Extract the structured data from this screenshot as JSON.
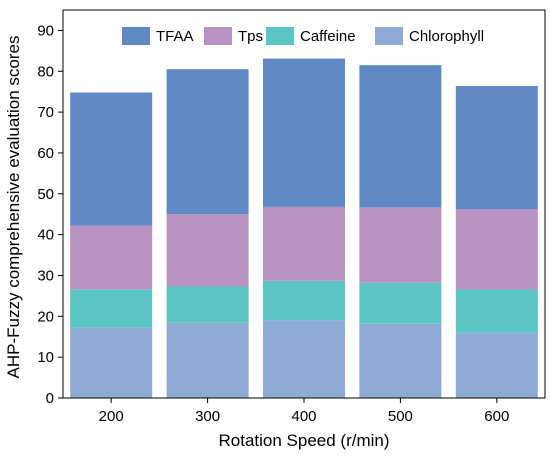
{
  "chart_data": {
    "type": "bar",
    "stacked": true,
    "categories": [
      "200",
      "300",
      "400",
      "500",
      "600"
    ],
    "series": [
      {
        "name": "Chlorophyll",
        "color": "#8eabd6",
        "values": [
          17.2,
          18.4,
          19.0,
          18.2,
          16.0
        ]
      },
      {
        "name": "Caffeine",
        "color": "#5ac5c2",
        "values": [
          9.4,
          8.9,
          9.7,
          10.0,
          10.6
        ]
      },
      {
        "name": "Tps",
        "color": "#b792c2",
        "values": [
          15.6,
          17.7,
          18.1,
          18.4,
          19.6
        ]
      },
      {
        "name": "TFAA",
        "color": "#5e89c4",
        "values": [
          32.6,
          35.5,
          36.3,
          34.9,
          30.2
        ]
      }
    ],
    "legend_order": [
      "TFAA",
      "Tps",
      "Caffeine",
      "Chlorophyll"
    ],
    "legend_position": "top",
    "xlabel": "Rotation Speed (r/min)",
    "ylabel": "AHP-Fuzzy comprehensive evaluation scores",
    "ylim": [
      0,
      95
    ],
    "yticks": [
      0,
      10,
      20,
      30,
      40,
      50,
      60,
      70,
      80,
      90
    ],
    "grid": false
  }
}
